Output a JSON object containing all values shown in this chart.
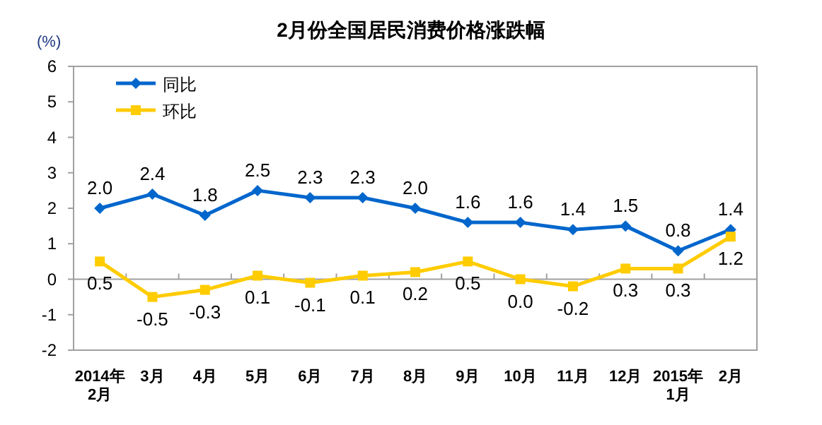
{
  "chart_data": {
    "type": "line",
    "title": "2月份全国居民消费价格涨跌幅",
    "ylabel": "(%)",
    "categories": [
      "2014年\n2月",
      "3月",
      "4月",
      "5月",
      "6月",
      "7月",
      "8月",
      "9月",
      "10月",
      "11月",
      "12月",
      "2015年\n1月",
      "2月"
    ],
    "series": [
      {
        "name": "同比",
        "color": "#0066cc",
        "marker": "diamond",
        "values": [
          2.0,
          2.4,
          1.8,
          2.5,
          2.3,
          2.3,
          2.0,
          1.6,
          1.6,
          1.4,
          1.5,
          0.8,
          1.4
        ],
        "value_labels": [
          "2.0",
          "2.4",
          "1.8",
          "2.5",
          "2.3",
          "2.3",
          "2.0",
          "1.6",
          "1.6",
          "1.4",
          "1.5",
          "0.8",
          "1.4"
        ]
      },
      {
        "name": "环比",
        "color": "#ffcc00",
        "marker": "square",
        "values": [
          0.5,
          -0.5,
          -0.3,
          0.1,
          -0.1,
          0.1,
          0.2,
          0.5,
          0.0,
          -0.2,
          0.3,
          0.3,
          1.2
        ],
        "value_labels": [
          "0.5",
          "-0.5",
          "-0.3",
          "0.1",
          "-0.1",
          "0.1",
          "0.2",
          "0.5",
          "0.0",
          "-0.2",
          "0.3",
          "0.3",
          "1.2"
        ]
      }
    ],
    "ylim": [
      -2,
      6
    ],
    "yticks": [
      -2,
      -1,
      0,
      1,
      2,
      3,
      4,
      5,
      6
    ],
    "legend": "top left"
  }
}
